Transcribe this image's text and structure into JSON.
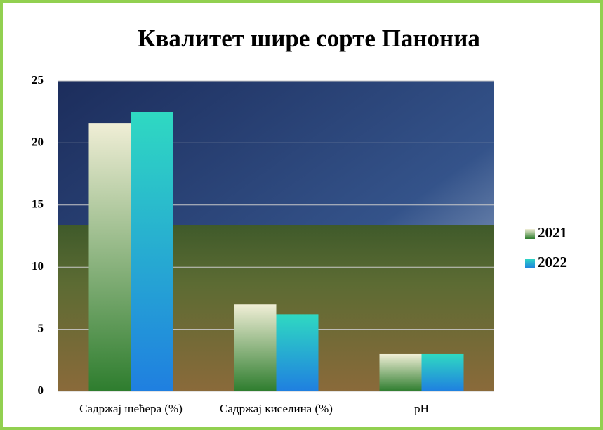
{
  "chart_data": {
    "type": "bar",
    "title": "Квалитет шире сорте Панониа",
    "categories": [
      "Садржај шећера (%)",
      "Садржај киселина (%)",
      "pH"
    ],
    "series": [
      {
        "name": "2021",
        "color": "#2e7d2e",
        "values": [
          21.6,
          7.0,
          3.0
        ]
      },
      {
        "name": "2022",
        "color": "#1f7fe0",
        "values": [
          22.5,
          6.2,
          3.0
        ]
      }
    ],
    "ylim": [
      0,
      25
    ],
    "yticks": [
      0,
      5,
      10,
      15,
      20,
      25
    ],
    "grid": true,
    "legend": "right"
  }
}
